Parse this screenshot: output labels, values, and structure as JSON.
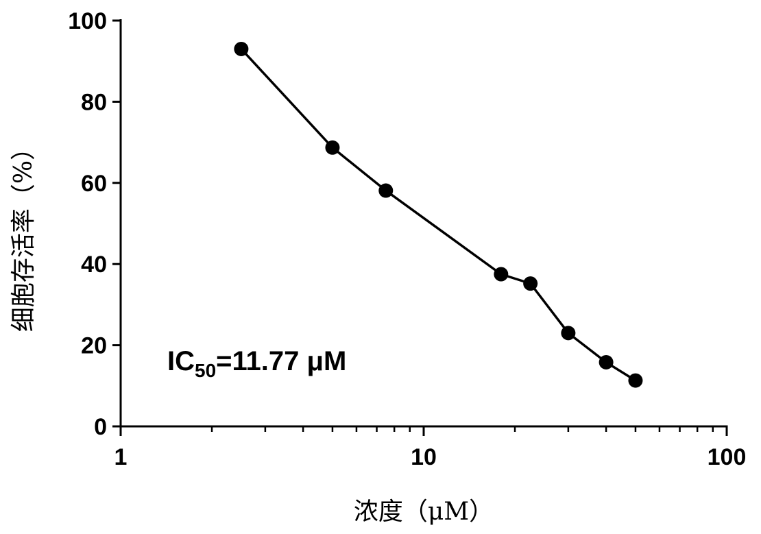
{
  "chart_data": {
    "type": "line",
    "xscale": "log",
    "xlim": [
      1,
      100
    ],
    "ylim": [
      0,
      100
    ],
    "xlabel": "浓度（μM）",
    "ylabel": "细胞存活率（%）",
    "x_ticks": [
      {
        "value": 1,
        "label": "1"
      },
      {
        "value": 10,
        "label": "10"
      },
      {
        "value": 100,
        "label": "100"
      }
    ],
    "y_ticks": [
      {
        "value": 0,
        "label": "0"
      },
      {
        "value": 20,
        "label": "20"
      },
      {
        "value": 40,
        "label": "40"
      },
      {
        "value": 60,
        "label": "60"
      },
      {
        "value": 80,
        "label": "80"
      },
      {
        "value": 100,
        "label": "100"
      }
    ],
    "series": [
      {
        "x": [
          2.5,
          5,
          7.5,
          18,
          22.5,
          30,
          40,
          50
        ],
        "y": [
          93,
          68.7,
          58.1,
          37.5,
          35.2,
          23,
          15.8,
          11.3
        ]
      }
    ],
    "annotation": {
      "prefix": "IC",
      "subscript": "50",
      "suffix": "=11.77 μM"
    },
    "grid": false,
    "legend": "none",
    "line_color": "#000000",
    "marker_color": "#000000"
  }
}
